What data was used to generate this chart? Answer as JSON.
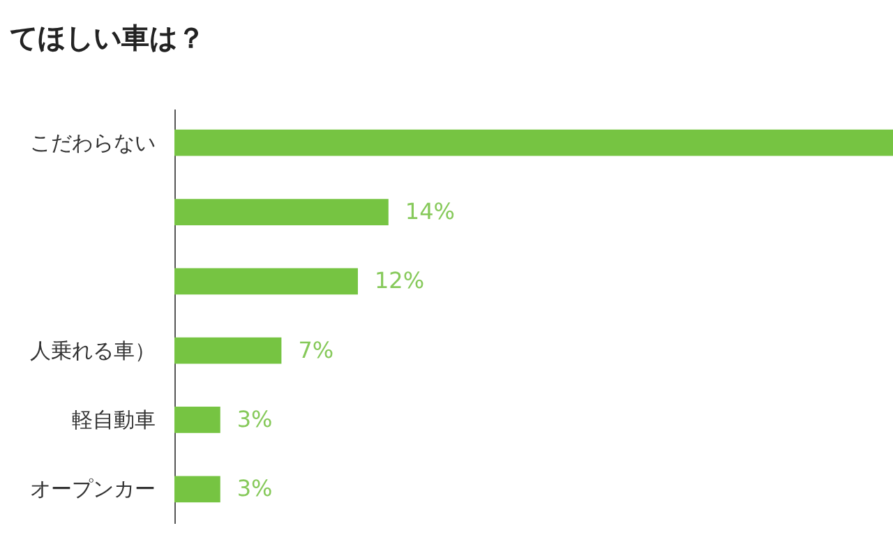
{
  "chart_data": {
    "type": "bar",
    "orientation": "horizontal",
    "title": "てほしい車は？",
    "categories": [
      "こだわらない",
      null,
      null,
      "人乗れる車）",
      "軽自動車",
      "オープンカー"
    ],
    "values": [
      47,
      14,
      12,
      7,
      3,
      3
    ],
    "value_labels": [
      null,
      "14%",
      "12%",
      "7%",
      "3%",
      "3%"
    ],
    "color": "#76c442",
    "xlim": [
      0,
      47
    ]
  }
}
